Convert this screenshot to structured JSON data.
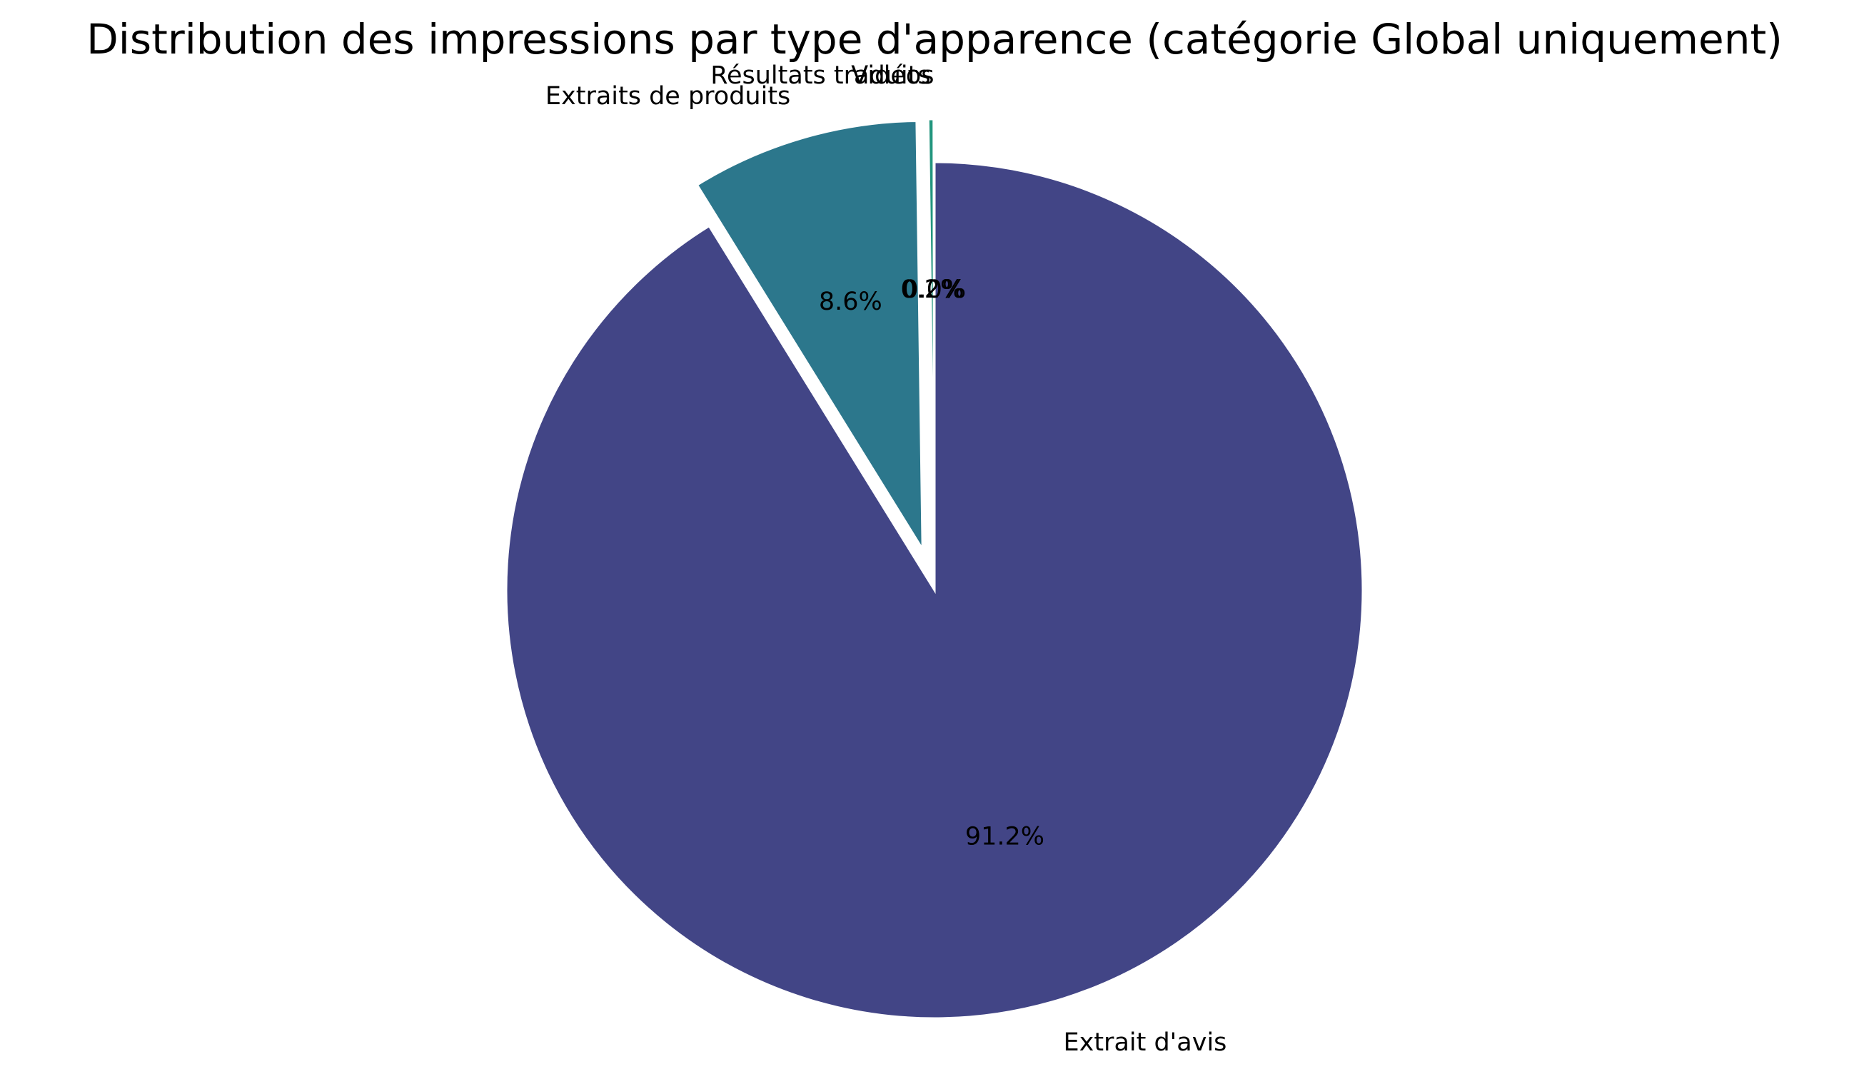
{
  "chart_data": {
    "type": "pie",
    "title": "Distribution des impressions par type d'apparence (catégorie Global uniquement)",
    "slices": [
      {
        "label": "Extrait d'avis",
        "value": 91.2,
        "pct_label": "91.2%",
        "color": "#424586",
        "exploded": false
      },
      {
        "label": "Extraits de produits",
        "value": 8.6,
        "pct_label": "8.6%",
        "color": "#2c778c",
        "exploded": true
      },
      {
        "label": "Résultats traduits",
        "value": 0.2,
        "pct_label": "0.2%",
        "color": "#22957e",
        "exploded": true
      },
      {
        "label": "Vidéos",
        "value": 0.02,
        "pct_label": "0.0%",
        "color": "#2fa97b",
        "exploded": true
      }
    ],
    "start_angle": "top (12 o'clock)",
    "direction": "clockwise",
    "legend": false
  }
}
